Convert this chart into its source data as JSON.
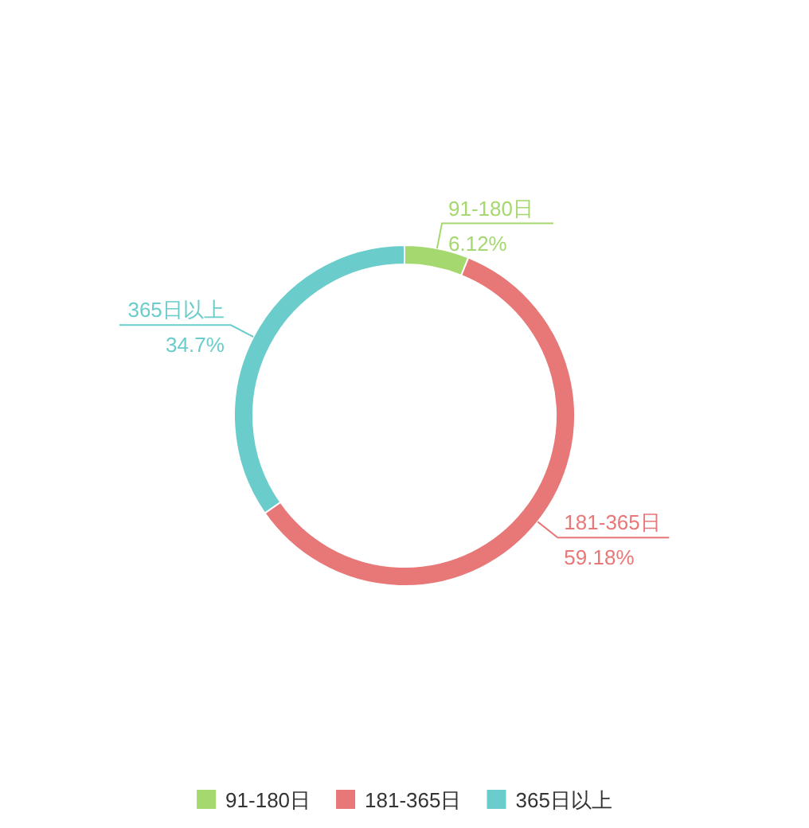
{
  "chart_data": {
    "type": "donut",
    "categories": [
      "91-180日",
      "181-365日",
      "365日以上"
    ],
    "values": [
      6.12,
      59.18,
      34.7
    ],
    "colors": [
      "#a5d86e",
      "#e87878",
      "#6bcdcb"
    ],
    "value_labels": [
      "6.12%",
      "59.18%",
      "34.7%"
    ],
    "legend": "bottom"
  }
}
